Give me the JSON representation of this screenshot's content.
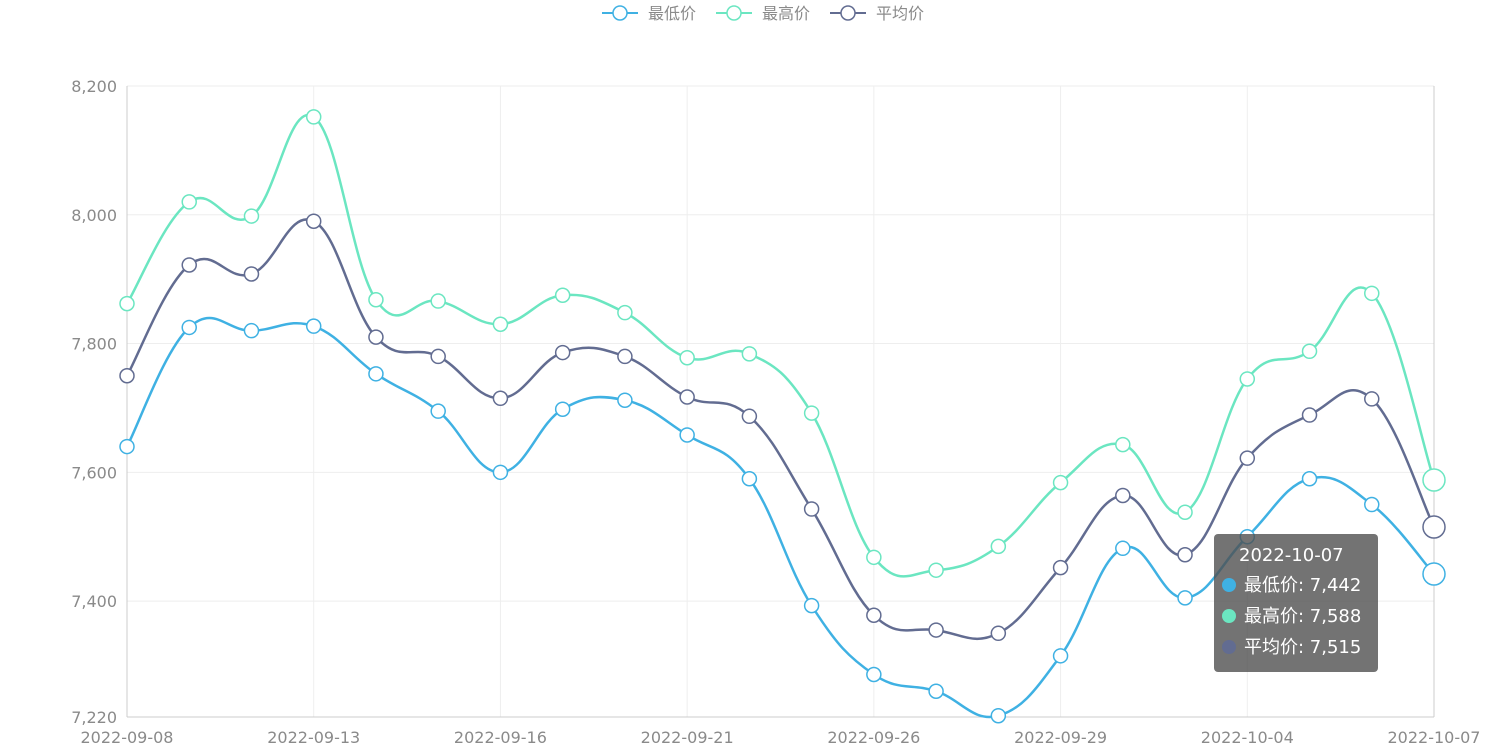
{
  "legend": [
    "最低价",
    "最高价",
    "平均价"
  ],
  "colors": {
    "min": "#3fb1e3",
    "max": "#6be6c1",
    "avg": "#626c91"
  },
  "tooltip": {
    "title": "2022-10-07",
    "rows": [
      {
        "label": "最低价: 7,442"
      },
      {
        "label": "最高价: 7,588"
      },
      {
        "label": "平均价: 7,515"
      }
    ]
  },
  "chart_data": {
    "type": "line",
    "smooth": true,
    "grid": true,
    "legend_position": "top-center",
    "ylim": [
      7220,
      8200
    ],
    "y_ticks": [
      7220,
      7400,
      7600,
      7800,
      8000,
      8200
    ],
    "y_tick_labels": [
      "7,220",
      "7,400",
      "7,600",
      "7,800",
      "8,000",
      "8,200"
    ],
    "x_tick_labels": [
      "2022-09-08",
      "2022-09-13",
      "2022-09-16",
      "2022-09-21",
      "2022-09-26",
      "2022-09-29",
      "2022-10-04",
      "2022-10-07"
    ],
    "x": [
      "2022-09-08",
      "2022-09-09",
      "2022-09-12",
      "2022-09-13",
      "2022-09-14",
      "2022-09-15",
      "2022-09-16",
      "2022-09-19",
      "2022-09-20",
      "2022-09-21",
      "2022-09-22",
      "2022-09-23",
      "2022-09-26",
      "2022-09-27",
      "2022-09-28",
      "2022-09-29",
      "2022-09-30",
      "2022-10-03",
      "2022-10-04",
      "2022-10-05",
      "2022-10-06",
      "2022-10-07"
    ],
    "series": [
      {
        "name": "最低价",
        "values": [
          7640,
          7825,
          7820,
          7827,
          7753,
          7695,
          7600,
          7698,
          7712,
          7658,
          7590,
          7393,
          7286,
          7260,
          7222,
          7315,
          7482,
          7405,
          7500,
          7590,
          7550,
          7442
        ]
      },
      {
        "name": "最高价",
        "values": [
          7862,
          8020,
          7998,
          8152,
          7868,
          7866,
          7830,
          7875,
          7848,
          7778,
          7784,
          7692,
          7468,
          7448,
          7485,
          7584,
          7643,
          7538,
          7745,
          7788,
          7878,
          7588
        ]
      },
      {
        "name": "平均价",
        "values": [
          7750,
          7922,
          7908,
          7990,
          7810,
          7780,
          7715,
          7786,
          7780,
          7717,
          7687,
          7543,
          7378,
          7355,
          7350,
          7452,
          7564,
          7472,
          7622,
          7689,
          7714,
          7515
        ]
      }
    ]
  }
}
